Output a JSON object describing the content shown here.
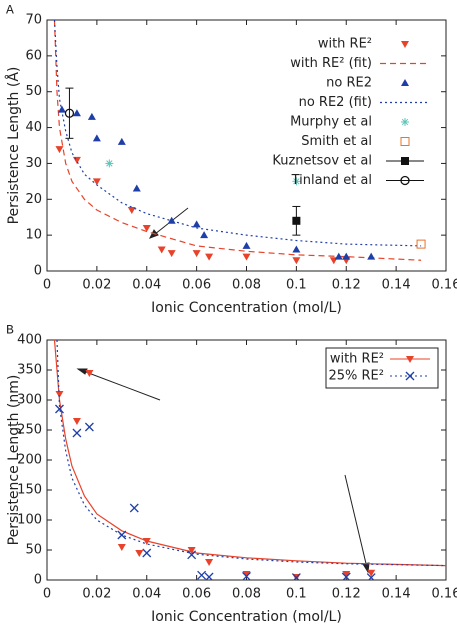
{
  "chart_data": [
    {
      "type": "scatter",
      "panel": "A",
      "x_label": "Ionic Concentration (mol/L)",
      "y_label": "Persistence Length (Å)",
      "xlim": [
        0,
        0.16
      ],
      "xticks": [
        0,
        0.02,
        0.04,
        0.06,
        0.08,
        0.1,
        0.12,
        0.14,
        0.16
      ],
      "ylim": [
        0,
        70
      ],
      "yticks": [
        0,
        10,
        20,
        30,
        40,
        50,
        60,
        70
      ],
      "legend": "top-right",
      "series": [
        {
          "name": "with RE²",
          "color": "#e8432a",
          "marker": "tri-down",
          "x": [
            0.005,
            0.012,
            0.02,
            0.034,
            0.04,
            0.046,
            0.05,
            0.06,
            0.065,
            0.08,
            0.1,
            0.115,
            0.12
          ],
          "values": [
            34,
            31,
            25,
            17,
            12,
            6,
            5,
            5,
            4,
            4,
            3,
            3,
            3
          ]
        },
        {
          "name": "with RE² (fit)",
          "color": "#e8432a",
          "line": "dashed",
          "x": [
            0.003,
            0.004,
            0.005,
            0.0075,
            0.01,
            0.015,
            0.02,
            0.03,
            0.04,
            0.06,
            0.08,
            0.1,
            0.12,
            0.15
          ],
          "values": [
            70,
            50,
            40,
            30,
            25,
            20,
            17,
            13.5,
            11,
            7,
            5.5,
            4.5,
            4,
            3
          ]
        },
        {
          "name": "no RE2",
          "color": "#1f3fa8",
          "marker": "tri-up",
          "x": [
            0.006,
            0.012,
            0.018,
            0.02,
            0.03,
            0.036,
            0.05,
            0.06,
            0.063,
            0.08,
            0.1,
            0.117,
            0.12,
            0.13
          ],
          "values": [
            45,
            44,
            43,
            37,
            36,
            23,
            14,
            13,
            10,
            7,
            6,
            4,
            4,
            4
          ]
        },
        {
          "name": "no RE2 (fit)",
          "color": "#1f3fa8",
          "line": "dotted",
          "x": [
            0.003,
            0.004,
            0.005,
            0.0075,
            0.01,
            0.015,
            0.02,
            0.03,
            0.04,
            0.06,
            0.08,
            0.1,
            0.12,
            0.15
          ],
          "values": [
            70,
            57,
            48,
            39,
            33,
            27,
            24,
            19,
            16,
            12,
            10,
            8.5,
            7.5,
            7
          ]
        },
        {
          "name": "Murphy et al",
          "color": "#5fc4b8",
          "marker": "star",
          "x": [
            0.025,
            0.1
          ],
          "values": [
            30,
            25
          ]
        },
        {
          "name": "Smith et al",
          "color": "#e8742a",
          "marker": "square-open",
          "x": [
            0.15
          ],
          "values": [
            7.5
          ]
        },
        {
          "name": "Kuznetsov et al",
          "color": "#111111",
          "marker": "square",
          "x": [
            0.1
          ],
          "values": [
            14
          ],
          "errors": [
            4
          ]
        },
        {
          "name": "Tinland et al",
          "color": "#111111",
          "marker": "circle-open",
          "x": [
            0.009
          ],
          "values": [
            44
          ],
          "errors": [
            7
          ]
        }
      ]
    },
    {
      "type": "scatter",
      "panel": "B",
      "x_label": "Ionic Concentration (mol/L)",
      "y_label": "Persistence Length (nm)",
      "xlim": [
        0,
        0.16
      ],
      "xticks": [
        0,
        0.02,
        0.04,
        0.06,
        0.08,
        0.1,
        0.12,
        0.14,
        0.16
      ],
      "ylim": [
        0,
        400
      ],
      "yticks": [
        0,
        50,
        100,
        150,
        200,
        250,
        300,
        350,
        400
      ],
      "legend": "top-right-box",
      "series": [
        {
          "name": "with RE²",
          "color": "#e8432a",
          "marker": "tri-down",
          "legend_line": "solid",
          "x": [
            0.005,
            0.012,
            0.017,
            0.03,
            0.037,
            0.04,
            0.058,
            0.065,
            0.08,
            0.1,
            0.12,
            0.13
          ],
          "values": [
            310,
            265,
            345,
            55,
            45,
            65,
            50,
            30,
            10,
            5,
            10,
            12
          ]
        },
        {
          "color": "#e8432a",
          "line": "solid",
          "x": [
            0.003,
            0.004,
            0.005,
            0.0075,
            0.01,
            0.015,
            0.02,
            0.03,
            0.04,
            0.06,
            0.08,
            0.1,
            0.12,
            0.16
          ],
          "values": [
            400,
            350,
            300,
            235,
            190,
            140,
            110,
            82,
            65,
            45,
            37,
            32,
            28,
            24
          ]
        },
        {
          "name": "25% RE²",
          "color": "#1f3fa8",
          "marker": "x",
          "legend_line": "dotted",
          "x": [
            0.005,
            0.012,
            0.017,
            0.03,
            0.035,
            0.04,
            0.058,
            0.062,
            0.065,
            0.08,
            0.1,
            0.12,
            0.13
          ],
          "values": [
            285,
            245,
            255,
            75,
            120,
            45,
            42,
            8,
            5,
            6,
            4,
            5,
            4
          ]
        },
        {
          "color": "#1f3fa8",
          "line": "dotted",
          "x": [
            0.004,
            0.005,
            0.0075,
            0.01,
            0.015,
            0.02,
            0.03,
            0.04,
            0.06,
            0.08,
            0.1,
            0.12,
            0.16
          ],
          "values": [
            400,
            290,
            215,
            170,
            125,
            100,
            75,
            60,
            43,
            35,
            30,
            27,
            24
          ]
        }
      ]
    }
  ]
}
